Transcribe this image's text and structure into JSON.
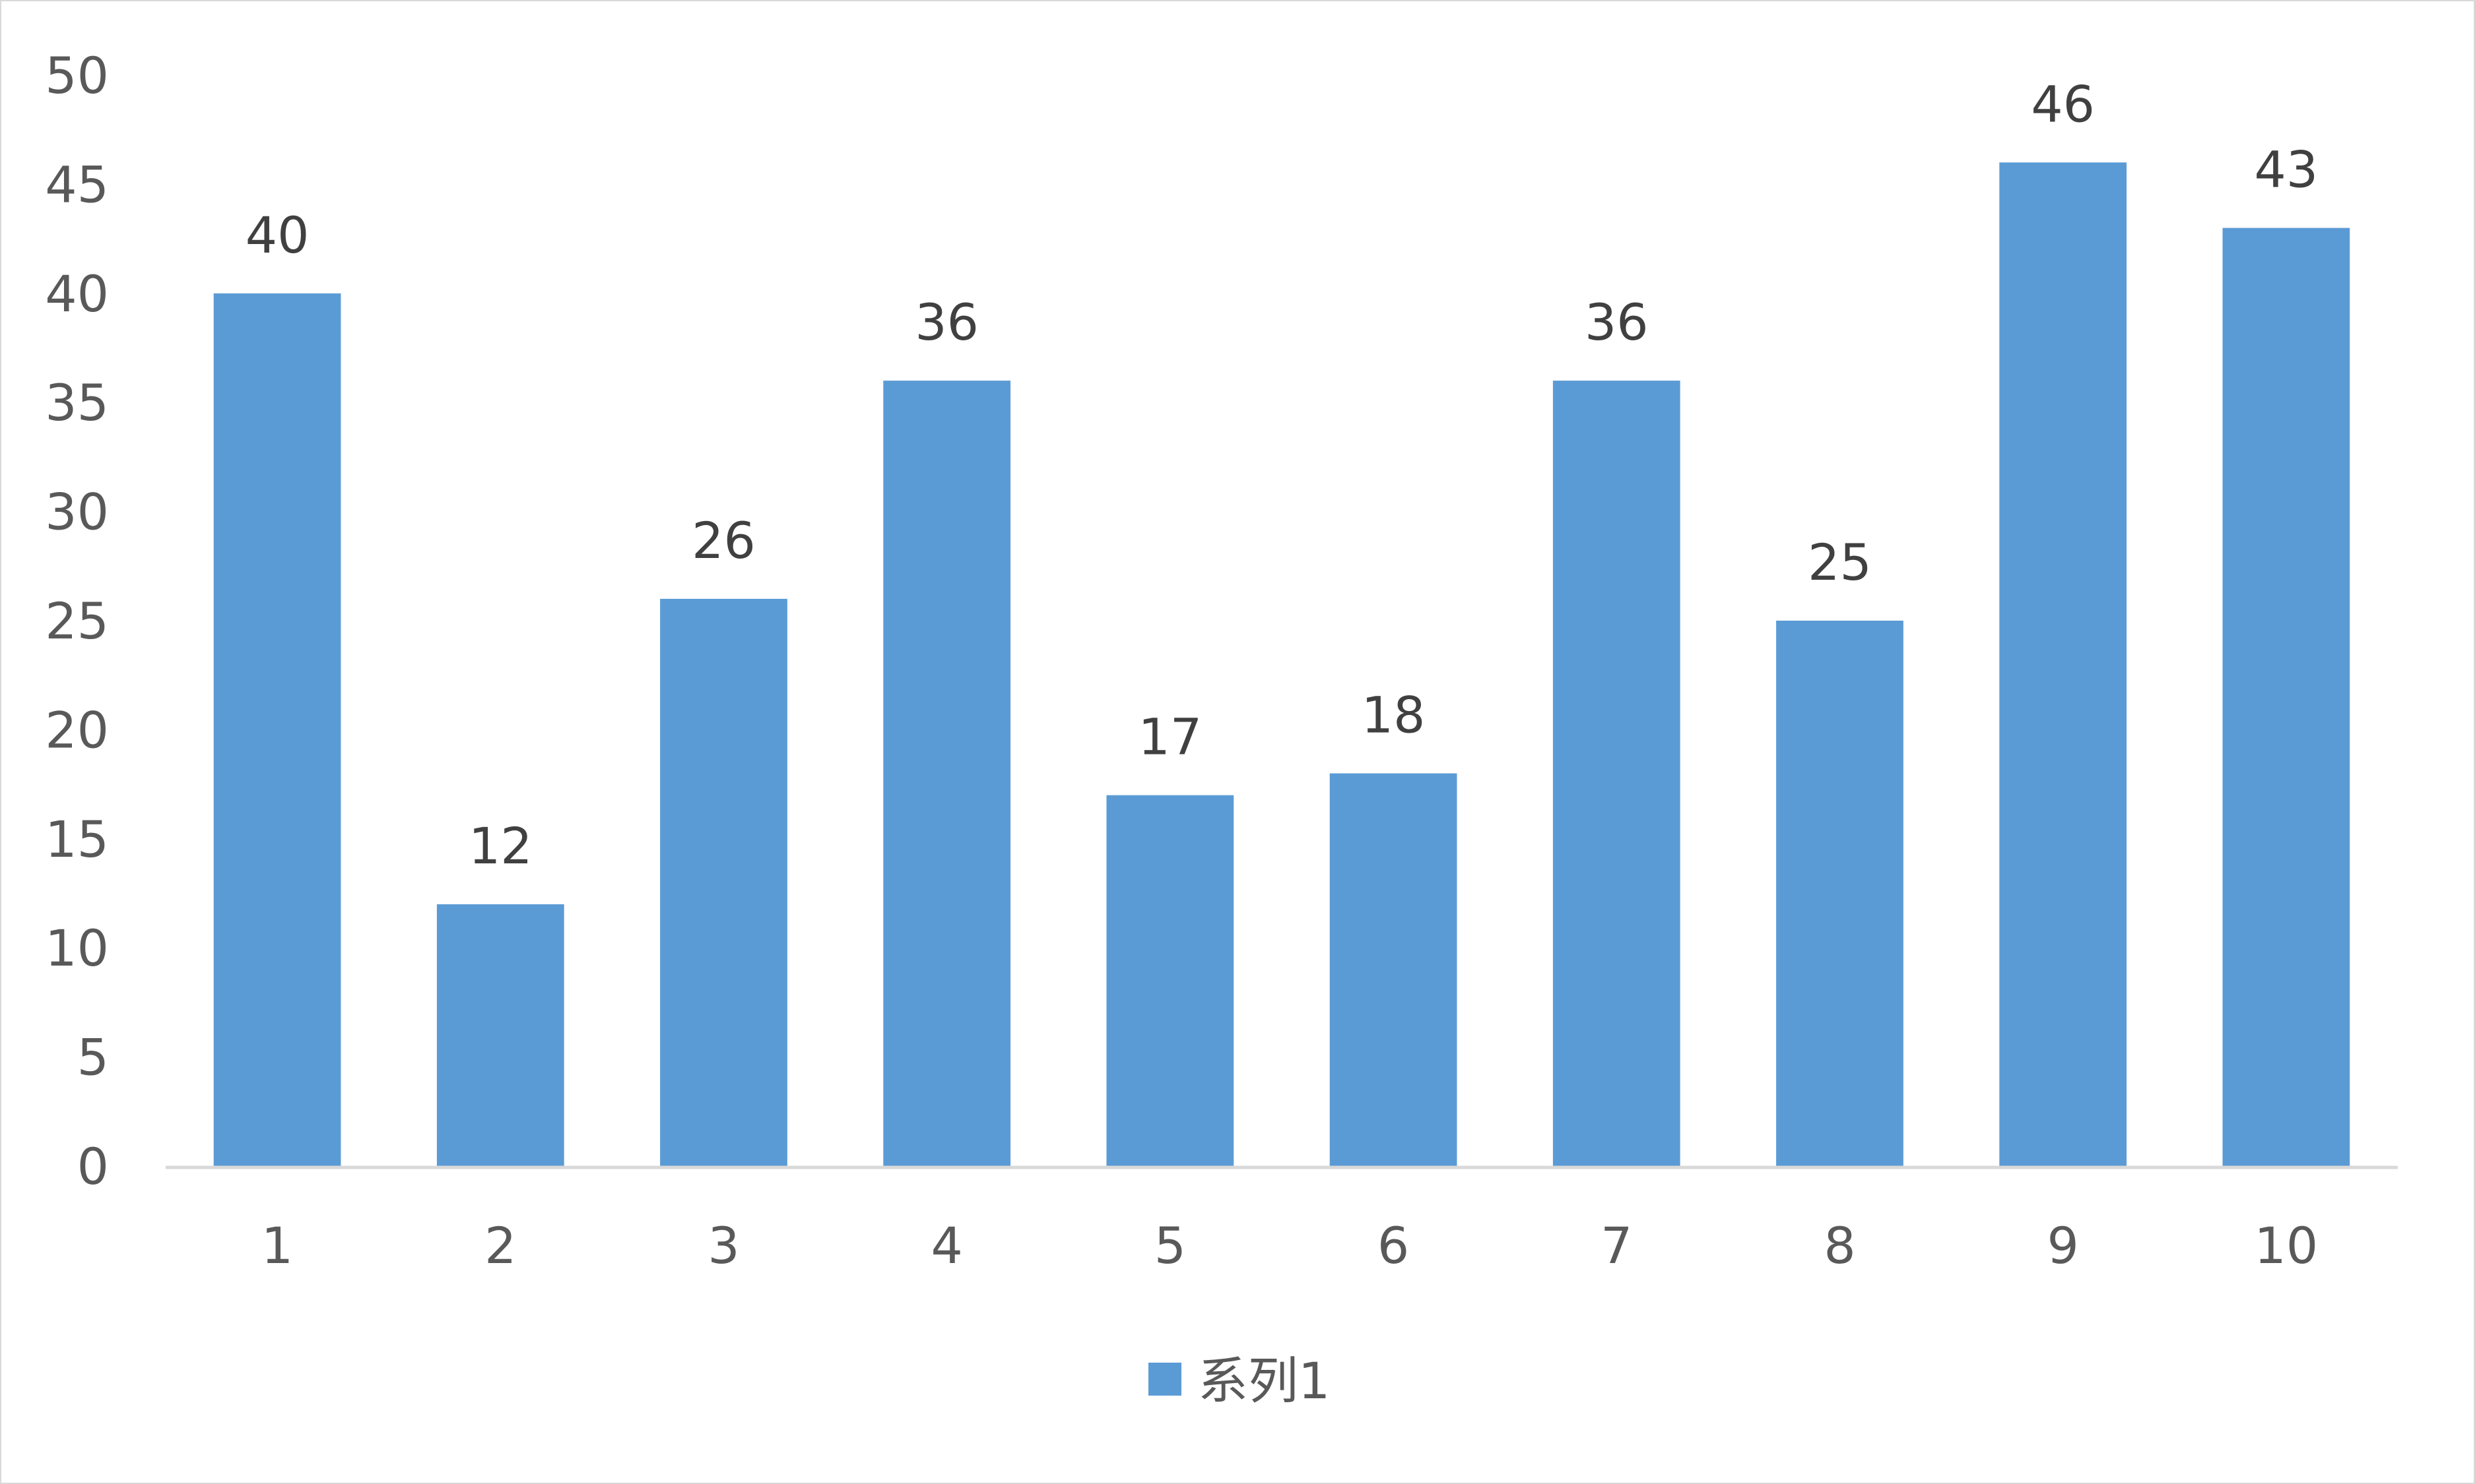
{
  "chart_data": {
    "type": "bar",
    "title": "",
    "xlabel": "",
    "ylabel": "",
    "categories": [
      "1",
      "2",
      "3",
      "4",
      "5",
      "6",
      "7",
      "8",
      "9",
      "10"
    ],
    "series": [
      {
        "name": "系列1",
        "color": "#5b9bd5",
        "values": [
          40,
          12,
          26,
          36,
          17,
          18,
          36,
          25,
          46,
          43
        ]
      }
    ],
    "ylim": [
      0,
      50
    ],
    "yticks": [
      0,
      5,
      10,
      15,
      20,
      25,
      30,
      35,
      40,
      45,
      50
    ],
    "grid": false,
    "data_labels": true,
    "legend_position": "bottom"
  }
}
